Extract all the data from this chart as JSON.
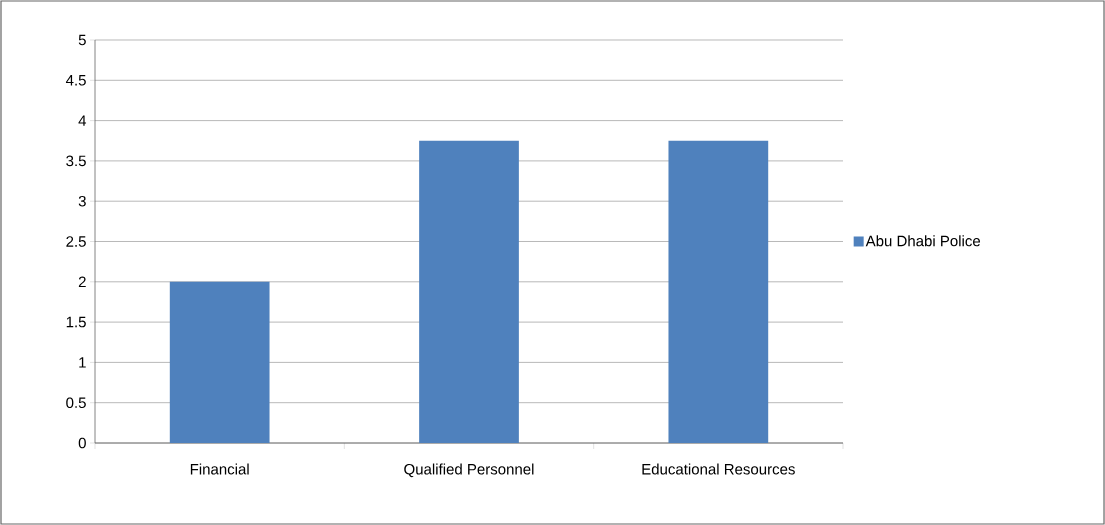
{
  "chart_data": {
    "type": "bar",
    "categories": [
      "Financial",
      "Qualified Personnel",
      "Educational Resources"
    ],
    "series": [
      {
        "name": "Abu Dhabi Police",
        "color": "#4f81bd",
        "values": [
          2,
          3.75,
          3.75
        ]
      }
    ],
    "ylim": [
      0,
      5
    ],
    "yticks": [
      0,
      0.5,
      1,
      1.5,
      2,
      2.5,
      3,
      3.5,
      4,
      4.5,
      5
    ],
    "grid": "y",
    "legend": "right"
  }
}
